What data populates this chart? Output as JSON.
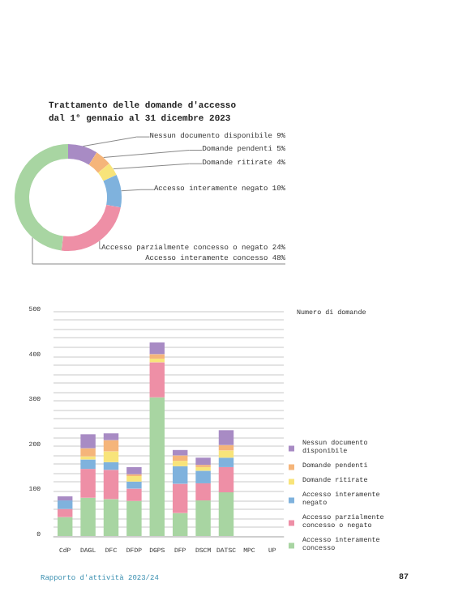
{
  "chart_data": [
    {
      "type": "donut",
      "title": "Trattamento delle domande d'accesso\ndal 1° gennaio al 31 dicembre 2023",
      "categories": [
        "Nessun documento disponibile 9%",
        "Domande pendenti 5%",
        "Domande ritirate 4%",
        "Accesso interamente negato 10%",
        "Accesso parzialmente concesso o negato 24%",
        "Accesso interamente concesso 48%"
      ],
      "values": [
        9,
        5,
        4,
        10,
        24,
        48
      ],
      "colors": [
        "#a88bc4",
        "#f5b57a",
        "#f8e47a",
        "#7fb2dd",
        "#ee8fa6",
        "#a8d5a2"
      ]
    },
    {
      "type": "bar",
      "stacked": true,
      "ylabel": "Numero di domande",
      "legend": "right",
      "grid": "y",
      "categories": [
        "CdP",
        "DAGL",
        "DFC",
        "DFDP",
        "DGPS",
        "DFP",
        "DSCM",
        "DATSC",
        "MPC",
        "UP"
      ],
      "ylim": [
        0,
        500
      ],
      "yticks": [
        0,
        {
          "value": 20,
          "label": null
        },
        {
          "value": 40,
          "label": null
        },
        {
          "value": 60,
          "label": null
        },
        {
          "value": 80,
          "label": null
        },
        100,
        {
          "value": 120,
          "label": null
        },
        {
          "value": 140,
          "label": null
        },
        {
          "value": 160,
          "label": null
        },
        {
          "value": 180,
          "label": null
        },
        200,
        {
          "value": 220,
          "label": null
        },
        {
          "value": 240,
          "label": null
        },
        {
          "value": 260,
          "label": null
        },
        {
          "value": 280,
          "label": null
        },
        300,
        {
          "value": 320,
          "label": null
        },
        {
          "value": 340,
          "label": null
        },
        {
          "value": 360,
          "label": null
        },
        {
          "value": 380,
          "label": null
        },
        400,
        {
          "value": 420,
          "label": null
        },
        {
          "value": 440,
          "label": null
        },
        {
          "value": 460,
          "label": null
        },
        {
          "value": 480,
          "label": null
        },
        500
      ],
      "series": [
        {
          "name": "Accesso interamente concesso",
          "color": "#a8d5a2",
          "values": [
            42,
            85,
            82,
            78,
            308,
            51,
            79,
            97,
            0,
            0
          ]
        },
        {
          "name": "Accesso parzialmente concesso o negato",
          "color": "#ee8fa6",
          "values": [
            18,
            64,
            65,
            27,
            78,
            65,
            38,
            56,
            0,
            0
          ]
        },
        {
          "name": "Accesso interamente negato",
          "color": "#7fb2dd",
          "values": [
            19,
            21,
            17,
            16,
            0,
            39,
            28,
            21,
            0,
            0
          ]
        },
        {
          "name": "Domande ritirate",
          "color": "#f8e47a",
          "values": [
            0,
            7,
            24,
            12,
            8,
            12,
            8,
            16,
            0,
            0
          ]
        },
        {
          "name": "Domande pendenti",
          "color": "#f5b57a",
          "values": [
            0,
            18,
            25,
            4,
            10,
            12,
            5,
            12,
            0,
            0
          ]
        },
        {
          "name": "Nessun documento disponibile",
          "color": "#a88bc4",
          "values": [
            9,
            31,
            15,
            16,
            26,
            12,
            16,
            33,
            0,
            0
          ]
        }
      ],
      "annotations": [
        "Rapporto d'attività 2023/24",
        "87"
      ]
    }
  ]
}
